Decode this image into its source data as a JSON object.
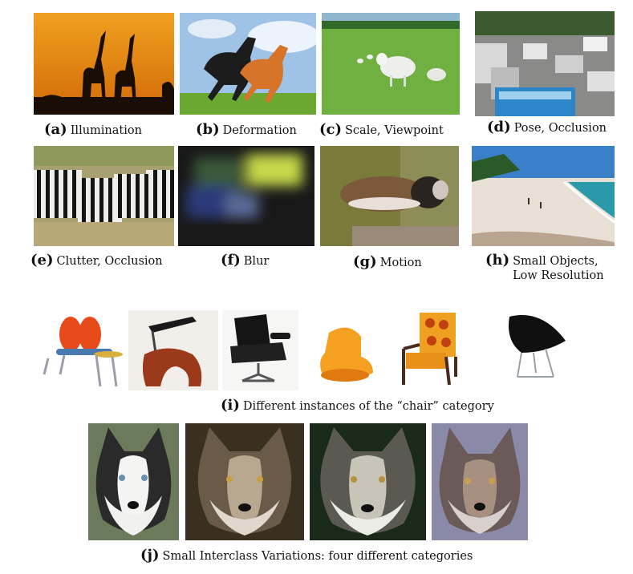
{
  "captions": {
    "a": {
      "letter": "(a)",
      "text": "Illumination"
    },
    "b": {
      "letter": "(b)",
      "text": "Deformation"
    },
    "c": {
      "letter": "(c)",
      "text": "Scale, Viewpoint"
    },
    "d": {
      "letter": "(d)",
      "text": "Pose, Occlusion"
    },
    "e": {
      "letter": "(e)",
      "text": "Clutter, Occlusion"
    },
    "f": {
      "letter": "(f)",
      "text": "Blur"
    },
    "g": {
      "letter": "(g)",
      "text": "Motion"
    },
    "h": {
      "letter": "(h)",
      "text": "Small Objects,",
      "text2": "Low Resolution"
    },
    "i": {
      "letter": "(i)",
      "text": "Different instances of the “chair” category"
    },
    "j": {
      "letter": "(j)",
      "text": "Small Interclass Variations: four different categories"
    }
  }
}
